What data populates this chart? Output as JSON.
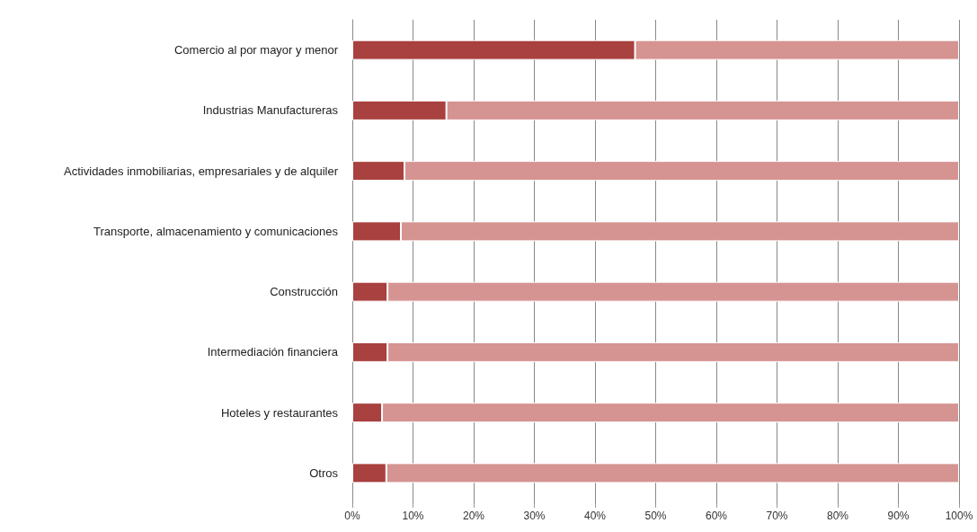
{
  "chart_data": {
    "type": "bar",
    "orientation": "horizontal",
    "stacked": true,
    "categories": [
      "Comercio al por mayor y menor",
      "Industrias Manufactureras",
      "Actividades inmobiliarias, empresariales y de alquiler",
      "Transporte, almacenamiento y comunicaciones",
      "Construcción",
      "Intermediación financiera",
      "Hoteles y restaurantes",
      "Otros"
    ],
    "series": [
      {
        "color": "#a8413f",
        "values": [
          46.6,
          15.5,
          8.6,
          8.0,
          5.8,
          5.8,
          4.9,
          5.6
        ]
      },
      {
        "color": "#d59391",
        "values": [
          53.4,
          84.5,
          91.4,
          92.0,
          94.2,
          94.2,
          95.1,
          94.4
        ]
      }
    ],
    "xlim": [
      0,
      100
    ],
    "xticks": [
      {
        "value": 0,
        "label": "0%"
      },
      {
        "value": 10,
        "label": "10%"
      },
      {
        "value": 20,
        "label": "20%"
      },
      {
        "value": 30,
        "label": "30%"
      },
      {
        "value": 40,
        "label": "40%"
      },
      {
        "value": 50,
        "label": "50%"
      },
      {
        "value": 60,
        "label": "60%"
      },
      {
        "value": 70,
        "label": "70%"
      },
      {
        "value": 80,
        "label": "80%"
      },
      {
        "value": 90,
        "label": "90%"
      },
      {
        "value": 100,
        "label": "100%"
      }
    ],
    "grid": "x"
  }
}
